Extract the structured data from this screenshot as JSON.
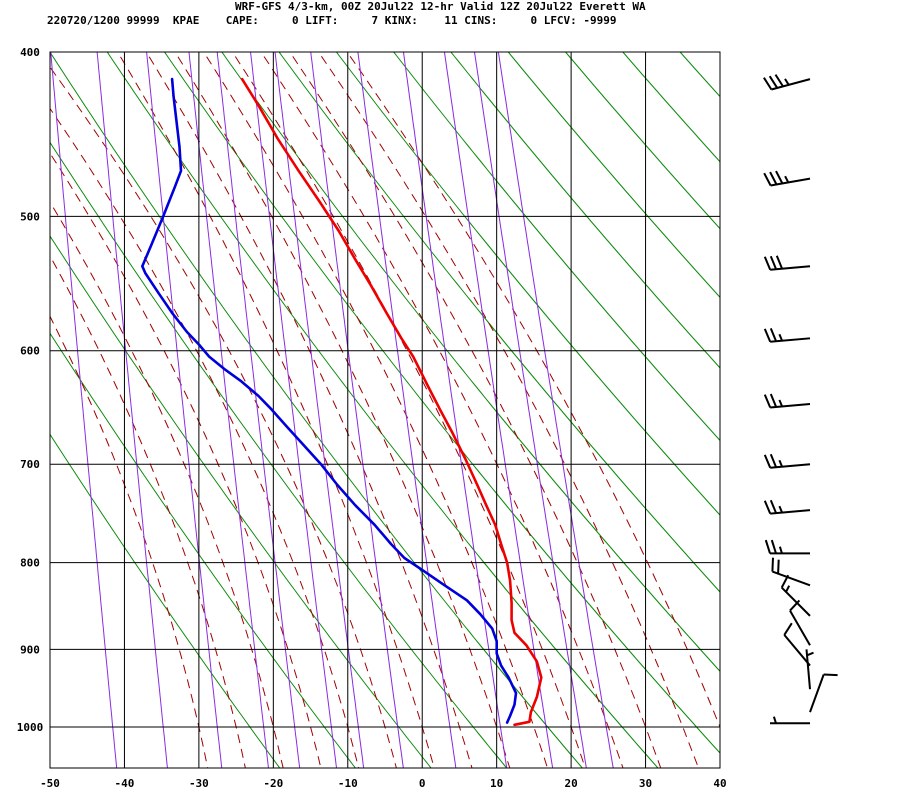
{
  "header": {
    "title": "WRF-GFS 4/3-km, 00Z 20Jul22 12-hr Valid 12Z 20Jul22 Everett WA",
    "stats": "220720/1200 99999  KPAE    CAPE:     0 LIFT:     7 KINX:    11 CINS:     0 LFCV: -9999"
  },
  "chart_data": {
    "type": "line",
    "title": "",
    "xlabel": "",
    "ylabel": "",
    "x_range": [
      -50,
      40
    ],
    "x_ticks": [
      -50,
      -40,
      -30,
      -20,
      -10,
      0,
      10,
      20,
      30,
      40
    ],
    "y_ticks": [
      400,
      500,
      600,
      700,
      800,
      900,
      1000
    ],
    "y_scale": "log-pressure",
    "grid": true,
    "series": [
      {
        "color": "#ee0000",
        "points": [
          [
            12.4,
            997
          ],
          [
            14.4,
            993
          ],
          [
            14.6,
            980
          ],
          [
            15.4,
            960
          ],
          [
            16.0,
            935
          ],
          [
            15.4,
            915
          ],
          [
            14.0,
            895
          ],
          [
            12.4,
            880
          ],
          [
            12.0,
            865
          ],
          [
            12.0,
            845
          ],
          [
            11.8,
            820
          ],
          [
            11.4,
            800
          ],
          [
            10.6,
            780
          ],
          [
            9.8,
            760
          ],
          [
            8.6,
            740
          ],
          [
            7.4,
            720
          ],
          [
            5.8,
            695
          ],
          [
            4.0,
            670
          ],
          [
            2.4,
            650
          ],
          [
            0.8,
            630
          ],
          [
            -1.2,
            605
          ],
          [
            -2.8,
            590
          ],
          [
            -4.8,
            570
          ],
          [
            -6.8,
            550
          ],
          [
            -9.0,
            530
          ],
          [
            -11.2,
            510
          ],
          [
            -13.8,
            490
          ],
          [
            -16.6,
            470
          ],
          [
            -19.4,
            450
          ],
          [
            -22.0,
            430
          ],
          [
            -24.2,
            415
          ]
        ]
      },
      {
        "color": "#0000dd",
        "points": [
          [
            11.4,
            994
          ],
          [
            11.8,
            985
          ],
          [
            12.4,
            970
          ],
          [
            12.6,
            955
          ],
          [
            11.6,
            935
          ],
          [
            10.6,
            920
          ],
          [
            10.0,
            905
          ],
          [
            10.0,
            890
          ],
          [
            9.4,
            875
          ],
          [
            7.8,
            858
          ],
          [
            6.0,
            842
          ],
          [
            3.0,
            825
          ],
          [
            0.0,
            808
          ],
          [
            -2.4,
            795
          ],
          [
            -4.2,
            780
          ],
          [
            -6.4,
            760
          ],
          [
            -9.0,
            740
          ],
          [
            -11.4,
            720
          ],
          [
            -13.6,
            700
          ],
          [
            -16.2,
            680
          ],
          [
            -18.2,
            665
          ],
          [
            -20.2,
            650
          ],
          [
            -22.0,
            638
          ],
          [
            -24.4,
            625
          ],
          [
            -26.6,
            615
          ],
          [
            -28.6,
            605
          ],
          [
            -30.0,
            595
          ],
          [
            -31.6,
            585
          ],
          [
            -33.6,
            570
          ],
          [
            -35.4,
            555
          ],
          [
            -37.2,
            540
          ],
          [
            -37.6,
            535
          ],
          [
            -36.4,
            520
          ],
          [
            -34.8,
            500
          ],
          [
            -33.2,
            480
          ],
          [
            -32.4,
            470
          ],
          [
            -32.6,
            455
          ],
          [
            -33.0,
            440
          ],
          [
            -33.4,
            425
          ],
          [
            -33.6,
            415
          ]
        ]
      }
    ],
    "wind_barbs": [
      {
        "p": 415,
        "dir": 255,
        "kt": 35
      },
      {
        "p": 475,
        "dir": 260,
        "kt": 35
      },
      {
        "p": 535,
        "dir": 265,
        "kt": 30
      },
      {
        "p": 590,
        "dir": 265,
        "kt": 25
      },
      {
        "p": 645,
        "dir": 265,
        "kt": 25
      },
      {
        "p": 700,
        "dir": 265,
        "kt": 25
      },
      {
        "p": 745,
        "dir": 265,
        "kt": 25
      },
      {
        "p": 790,
        "dir": 270,
        "kt": 25
      },
      {
        "p": 825,
        "dir": 290,
        "kt": 20
      },
      {
        "p": 860,
        "dir": 315,
        "kt": 15
      },
      {
        "p": 895,
        "dir": 330,
        "kt": 10
      },
      {
        "p": 920,
        "dir": 320,
        "kt": 10
      },
      {
        "p": 950,
        "dir": 355,
        "kt": 5
      },
      {
        "p": 980,
        "dir": 20,
        "kt": 10
      },
      {
        "p": 995,
        "dir": 270,
        "kt": 5
      }
    ]
  }
}
